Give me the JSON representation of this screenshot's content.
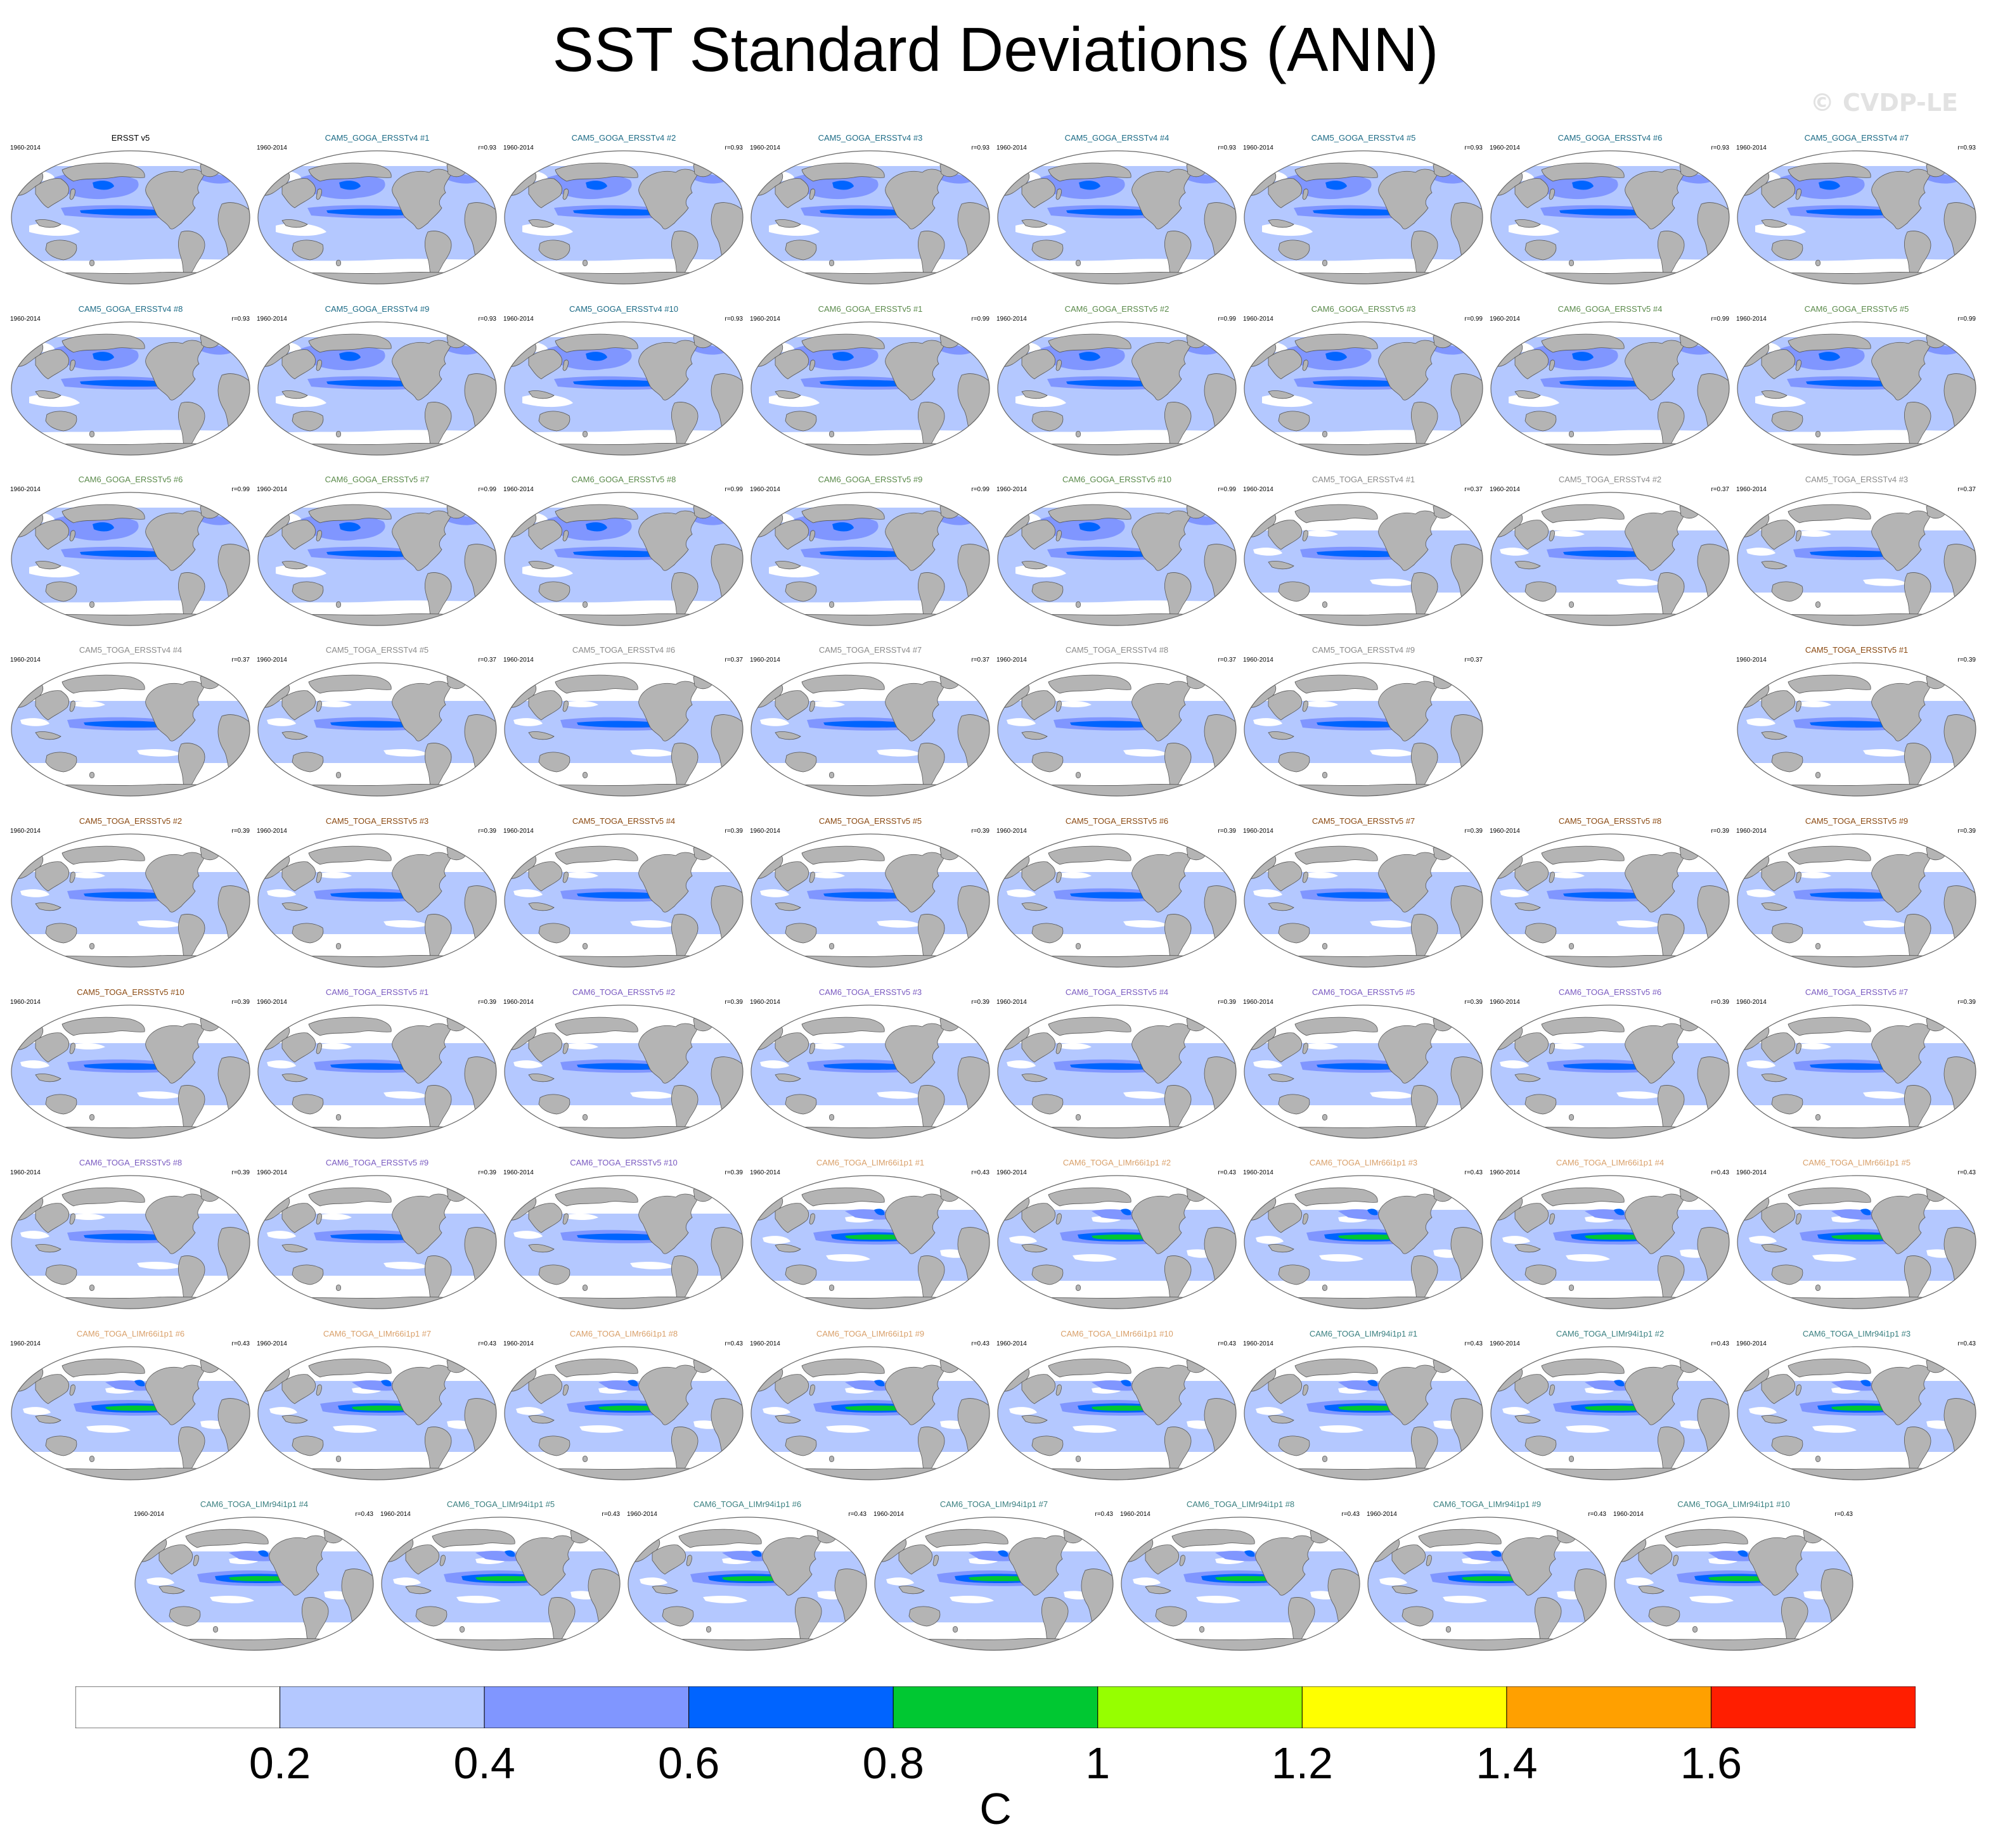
{
  "title": "SST Standard Deviations (ANN)",
  "watermark": "© CVDP-LE",
  "colors": {
    "land": "#b4b4b4",
    "land_edge": "#555555",
    "ocean_base": "#ffffff",
    "frame": "#666666",
    "name_colors": {
      "obs": "#000000",
      "CAM5_GOGA_ERSSTv4": "#1c6b86",
      "CAM6_GOGA_ERSSTv5": "#5a8a4a",
      "CAM5_TOGA_ERSSTv4": "#8a8a8a",
      "CAM5_TOGA_ERSSTv5": "#8b4a12",
      "CAM6_TOGA_ERSSTv5": "#7a5ac0",
      "CAM6_TOGA_LIMr66i1p1": "#d9a06a",
      "CAM6_TOGA_LIMr94i1p1": "#3a8080"
    }
  },
  "colorbar": {
    "boxes": [
      "#ffffff",
      "#b4c8ff",
      "#8096ff",
      "#0064ff",
      "#00c832",
      "#96ff00",
      "#ffff00",
      "#ffa000",
      "#ff1e00"
    ],
    "ticks": [
      "0.2",
      "0.4",
      "0.6",
      "0.8",
      "1",
      "1.2",
      "1.4",
      "1.6"
    ],
    "units": "C"
  },
  "panels": [
    {
      "name": "ERSST v5",
      "date": "1960-2014",
      "r": "",
      "group": "obs",
      "pattern": "goga"
    },
    {
      "name": "CAM5_GOGA_ERSSTv4 #1",
      "date": "1960-2014",
      "r": "r=0.93",
      "group": "CAM5_GOGA_ERSSTv4",
      "pattern": "goga"
    },
    {
      "name": "CAM5_GOGA_ERSSTv4 #2",
      "date": "1960-2014",
      "r": "r=0.93",
      "group": "CAM5_GOGA_ERSSTv4",
      "pattern": "goga"
    },
    {
      "name": "CAM5_GOGA_ERSSTv4 #3",
      "date": "1960-2014",
      "r": "r=0.93",
      "group": "CAM5_GOGA_ERSSTv4",
      "pattern": "goga"
    },
    {
      "name": "CAM5_GOGA_ERSSTv4 #4",
      "date": "1960-2014",
      "r": "r=0.93",
      "group": "CAM5_GOGA_ERSSTv4",
      "pattern": "goga"
    },
    {
      "name": "CAM5_GOGA_ERSSTv4 #5",
      "date": "1960-2014",
      "r": "r=0.93",
      "group": "CAM5_GOGA_ERSSTv4",
      "pattern": "goga"
    },
    {
      "name": "CAM5_GOGA_ERSSTv4 #6",
      "date": "1960-2014",
      "r": "r=0.93",
      "group": "CAM5_GOGA_ERSSTv4",
      "pattern": "goga"
    },
    {
      "name": "CAM5_GOGA_ERSSTv4 #7",
      "date": "1960-2014",
      "r": "r=0.93",
      "group": "CAM5_GOGA_ERSSTv4",
      "pattern": "goga"
    },
    {
      "name": "CAM5_GOGA_ERSSTv4 #8",
      "date": "1960-2014",
      "r": "r=0.93",
      "group": "CAM5_GOGA_ERSSTv4",
      "pattern": "goga"
    },
    {
      "name": "CAM5_GOGA_ERSSTv4 #9",
      "date": "1960-2014",
      "r": "r=0.93",
      "group": "CAM5_GOGA_ERSSTv4",
      "pattern": "goga"
    },
    {
      "name": "CAM5_GOGA_ERSSTv4 #10",
      "date": "1960-2014",
      "r": "r=0.93",
      "group": "CAM5_GOGA_ERSSTv4",
      "pattern": "goga"
    },
    {
      "name": "CAM6_GOGA_ERSSTv5 #1",
      "date": "1960-2014",
      "r": "r=0.99",
      "group": "CAM6_GOGA_ERSSTv5",
      "pattern": "goga"
    },
    {
      "name": "CAM6_GOGA_ERSSTv5 #2",
      "date": "1960-2014",
      "r": "r=0.99",
      "group": "CAM6_GOGA_ERSSTv5",
      "pattern": "goga"
    },
    {
      "name": "CAM6_GOGA_ERSSTv5 #3",
      "date": "1960-2014",
      "r": "r=0.99",
      "group": "CAM6_GOGA_ERSSTv5",
      "pattern": "goga"
    },
    {
      "name": "CAM6_GOGA_ERSSTv5 #4",
      "date": "1960-2014",
      "r": "r=0.99",
      "group": "CAM6_GOGA_ERSSTv5",
      "pattern": "goga"
    },
    {
      "name": "CAM6_GOGA_ERSSTv5 #5",
      "date": "1960-2014",
      "r": "r=0.99",
      "group": "CAM6_GOGA_ERSSTv5",
      "pattern": "goga"
    },
    {
      "name": "CAM6_GOGA_ERSSTv5 #6",
      "date": "1960-2014",
      "r": "r=0.99",
      "group": "CAM6_GOGA_ERSSTv5",
      "pattern": "goga"
    },
    {
      "name": "CAM6_GOGA_ERSSTv5 #7",
      "date": "1960-2014",
      "r": "r=0.99",
      "group": "CAM6_GOGA_ERSSTv5",
      "pattern": "goga"
    },
    {
      "name": "CAM6_GOGA_ERSSTv5 #8",
      "date": "1960-2014",
      "r": "r=0.99",
      "group": "CAM6_GOGA_ERSSTv5",
      "pattern": "goga"
    },
    {
      "name": "CAM6_GOGA_ERSSTv5 #9",
      "date": "1960-2014",
      "r": "r=0.99",
      "group": "CAM6_GOGA_ERSSTv5",
      "pattern": "goga"
    },
    {
      "name": "CAM6_GOGA_ERSSTv5 #10",
      "date": "1960-2014",
      "r": "r=0.99",
      "group": "CAM6_GOGA_ERSSTv5",
      "pattern": "goga"
    },
    {
      "name": "CAM5_TOGA_ERSSTv4 #1",
      "date": "1960-2014",
      "r": "r=0.37",
      "group": "CAM5_TOGA_ERSSTv4",
      "pattern": "toga"
    },
    {
      "name": "CAM5_TOGA_ERSSTv4 #2",
      "date": "1960-2014",
      "r": "r=0.37",
      "group": "CAM5_TOGA_ERSSTv4",
      "pattern": "toga"
    },
    {
      "name": "CAM5_TOGA_ERSSTv4 #3",
      "date": "1960-2014",
      "r": "r=0.37",
      "group": "CAM5_TOGA_ERSSTv4",
      "pattern": "toga"
    },
    {
      "name": "CAM5_TOGA_ERSSTv4 #4",
      "date": "1960-2014",
      "r": "r=0.37",
      "group": "CAM5_TOGA_ERSSTv4",
      "pattern": "toga"
    },
    {
      "name": "CAM5_TOGA_ERSSTv4 #5",
      "date": "1960-2014",
      "r": "r=0.37",
      "group": "CAM5_TOGA_ERSSTv4",
      "pattern": "toga"
    },
    {
      "name": "CAM5_TOGA_ERSSTv4 #6",
      "date": "1960-2014",
      "r": "r=0.37",
      "group": "CAM5_TOGA_ERSSTv4",
      "pattern": "toga"
    },
    {
      "name": "CAM5_TOGA_ERSSTv4 #7",
      "date": "1960-2014",
      "r": "r=0.37",
      "group": "CAM5_TOGA_ERSSTv4",
      "pattern": "toga"
    },
    {
      "name": "CAM5_TOGA_ERSSTv4 #8",
      "date": "1960-2014",
      "r": "r=0.37",
      "group": "CAM5_TOGA_ERSSTv4",
      "pattern": "toga"
    },
    {
      "name": "CAM5_TOGA_ERSSTv4 #9",
      "date": "1960-2014",
      "r": "r=0.37",
      "group": "CAM5_TOGA_ERSSTv4",
      "pattern": "toga"
    },
    {
      "name": "CAM5_TOGA_ERSSTv5 #1",
      "date": "1960-2014",
      "r": "r=0.39",
      "group": "CAM5_TOGA_ERSSTv5",
      "pattern": "toga"
    },
    {
      "name": "CAM5_TOGA_ERSSTv5 #2",
      "date": "1960-2014",
      "r": "r=0.39",
      "group": "CAM5_TOGA_ERSSTv5",
      "pattern": "toga"
    },
    {
      "name": "CAM5_TOGA_ERSSTv5 #3",
      "date": "1960-2014",
      "r": "r=0.39",
      "group": "CAM5_TOGA_ERSSTv5",
      "pattern": "toga"
    },
    {
      "name": "CAM5_TOGA_ERSSTv5 #4",
      "date": "1960-2014",
      "r": "r=0.39",
      "group": "CAM5_TOGA_ERSSTv5",
      "pattern": "toga"
    },
    {
      "name": "CAM5_TOGA_ERSSTv5 #5",
      "date": "1960-2014",
      "r": "r=0.39",
      "group": "CAM5_TOGA_ERSSTv5",
      "pattern": "toga"
    },
    {
      "name": "CAM5_TOGA_ERSSTv5 #6",
      "date": "1960-2014",
      "r": "r=0.39",
      "group": "CAM5_TOGA_ERSSTv5",
      "pattern": "toga"
    },
    {
      "name": "CAM5_TOGA_ERSSTv5 #7",
      "date": "1960-2014",
      "r": "r=0.39",
      "group": "CAM5_TOGA_ERSSTv5",
      "pattern": "toga"
    },
    {
      "name": "CAM5_TOGA_ERSSTv5 #8",
      "date": "1960-2014",
      "r": "r=0.39",
      "group": "CAM5_TOGA_ERSSTv5",
      "pattern": "toga"
    },
    {
      "name": "CAM5_TOGA_ERSSTv5 #9",
      "date": "1960-2014",
      "r": "r=0.39",
      "group": "CAM5_TOGA_ERSSTv5",
      "pattern": "toga"
    },
    {
      "name": "CAM5_TOGA_ERSSTv5 #10",
      "date": "1960-2014",
      "r": "r=0.39",
      "group": "CAM5_TOGA_ERSSTv5",
      "pattern": "toga"
    },
    {
      "name": "CAM6_TOGA_ERSSTv5 #1",
      "date": "1960-2014",
      "r": "r=0.39",
      "group": "CAM6_TOGA_ERSSTv5",
      "pattern": "toga"
    },
    {
      "name": "CAM6_TOGA_ERSSTv5 #2",
      "date": "1960-2014",
      "r": "r=0.39",
      "group": "CAM6_TOGA_ERSSTv5",
      "pattern": "toga"
    },
    {
      "name": "CAM6_TOGA_ERSSTv5 #3",
      "date": "1960-2014",
      "r": "r=0.39",
      "group": "CAM6_TOGA_ERSSTv5",
      "pattern": "toga"
    },
    {
      "name": "CAM6_TOGA_ERSSTv5 #4",
      "date": "1960-2014",
      "r": "r=0.39",
      "group": "CAM6_TOGA_ERSSTv5",
      "pattern": "toga"
    },
    {
      "name": "CAM6_TOGA_ERSSTv5 #5",
      "date": "1960-2014",
      "r": "r=0.39",
      "group": "CAM6_TOGA_ERSSTv5",
      "pattern": "toga"
    },
    {
      "name": "CAM6_TOGA_ERSSTv5 #6",
      "date": "1960-2014",
      "r": "r=0.39",
      "group": "CAM6_TOGA_ERSSTv5",
      "pattern": "toga"
    },
    {
      "name": "CAM6_TOGA_ERSSTv5 #7",
      "date": "1960-2014",
      "r": "r=0.39",
      "group": "CAM6_TOGA_ERSSTv5",
      "pattern": "toga"
    },
    {
      "name": "CAM6_TOGA_ERSSTv5 #8",
      "date": "1960-2014",
      "r": "r=0.39",
      "group": "CAM6_TOGA_ERSSTv5",
      "pattern": "toga"
    },
    {
      "name": "CAM6_TOGA_ERSSTv5 #9",
      "date": "1960-2014",
      "r": "r=0.39",
      "group": "CAM6_TOGA_ERSSTv5",
      "pattern": "toga"
    },
    {
      "name": "CAM6_TOGA_ERSSTv5 #10",
      "date": "1960-2014",
      "r": "r=0.39",
      "group": "CAM6_TOGA_ERSSTv5",
      "pattern": "toga"
    },
    {
      "name": "CAM6_TOGA_LIMr66i1p1 #1",
      "date": "1960-2014",
      "r": "r=0.43",
      "group": "CAM6_TOGA_LIMr66i1p1",
      "pattern": "lim"
    },
    {
      "name": "CAM6_TOGA_LIMr66i1p1 #2",
      "date": "1960-2014",
      "r": "r=0.43",
      "group": "CAM6_TOGA_LIMr66i1p1",
      "pattern": "lim"
    },
    {
      "name": "CAM6_TOGA_LIMr66i1p1 #3",
      "date": "1960-2014",
      "r": "r=0.43",
      "group": "CAM6_TOGA_LIMr66i1p1",
      "pattern": "lim"
    },
    {
      "name": "CAM6_TOGA_LIMr66i1p1 #4",
      "date": "1960-2014",
      "r": "r=0.43",
      "group": "CAM6_TOGA_LIMr66i1p1",
      "pattern": "lim"
    },
    {
      "name": "CAM6_TOGA_LIMr66i1p1 #5",
      "date": "1960-2014",
      "r": "r=0.43",
      "group": "CAM6_TOGA_LIMr66i1p1",
      "pattern": "lim"
    },
    {
      "name": "CAM6_TOGA_LIMr66i1p1 #6",
      "date": "1960-2014",
      "r": "r=0.43",
      "group": "CAM6_TOGA_LIMr66i1p1",
      "pattern": "lim"
    },
    {
      "name": "CAM6_TOGA_LIMr66i1p1 #7",
      "date": "1960-2014",
      "r": "r=0.43",
      "group": "CAM6_TOGA_LIMr66i1p1",
      "pattern": "lim"
    },
    {
      "name": "CAM6_TOGA_LIMr66i1p1 #8",
      "date": "1960-2014",
      "r": "r=0.43",
      "group": "CAM6_TOGA_LIMr66i1p1",
      "pattern": "lim"
    },
    {
      "name": "CAM6_TOGA_LIMr66i1p1 #9",
      "date": "1960-2014",
      "r": "r=0.43",
      "group": "CAM6_TOGA_LIMr66i1p1",
      "pattern": "lim"
    },
    {
      "name": "CAM6_TOGA_LIMr66i1p1 #10",
      "date": "1960-2014",
      "r": "r=0.43",
      "group": "CAM6_TOGA_LIMr66i1p1",
      "pattern": "lim"
    },
    {
      "name": "CAM6_TOGA_LIMr94i1p1 #1",
      "date": "1960-2014",
      "r": "r=0.43",
      "group": "CAM6_TOGA_LIMr94i1p1",
      "pattern": "lim"
    },
    {
      "name": "CAM6_TOGA_LIMr94i1p1 #2",
      "date": "1960-2014",
      "r": "r=0.43",
      "group": "CAM6_TOGA_LIMr94i1p1",
      "pattern": "lim"
    },
    {
      "name": "CAM6_TOGA_LIMr94i1p1 #3",
      "date": "1960-2014",
      "r": "r=0.43",
      "group": "CAM6_TOGA_LIMr94i1p1",
      "pattern": "lim"
    },
    {
      "name": "CAM6_TOGA_LIMr94i1p1 #4",
      "date": "1960-2014",
      "r": "r=0.43",
      "group": "CAM6_TOGA_LIMr94i1p1",
      "pattern": "lim"
    },
    {
      "name": "CAM6_TOGA_LIMr94i1p1 #5",
      "date": "1960-2014",
      "r": "r=0.43",
      "group": "CAM6_TOGA_LIMr94i1p1",
      "pattern": "lim"
    },
    {
      "name": "CAM6_TOGA_LIMr94i1p1 #6",
      "date": "1960-2014",
      "r": "r=0.43",
      "group": "CAM6_TOGA_LIMr94i1p1",
      "pattern": "lim"
    },
    {
      "name": "CAM6_TOGA_LIMr94i1p1 #7",
      "date": "1960-2014",
      "r": "r=0.43",
      "group": "CAM6_TOGA_LIMr94i1p1",
      "pattern": "lim"
    },
    {
      "name": "CAM6_TOGA_LIMr94i1p1 #8",
      "date": "1960-2014",
      "r": "r=0.43",
      "group": "CAM6_TOGA_LIMr94i1p1",
      "pattern": "lim"
    },
    {
      "name": "CAM6_TOGA_LIMr94i1p1 #9",
      "date": "1960-2014",
      "r": "r=0.43",
      "group": "CAM6_TOGA_LIMr94i1p1",
      "pattern": "lim"
    },
    {
      "name": "CAM6_TOGA_LIMr94i1p1 #10",
      "date": "1960-2014",
      "r": "r=0.43",
      "group": "CAM6_TOGA_LIMr94i1p1",
      "pattern": "lim"
    }
  ]
}
